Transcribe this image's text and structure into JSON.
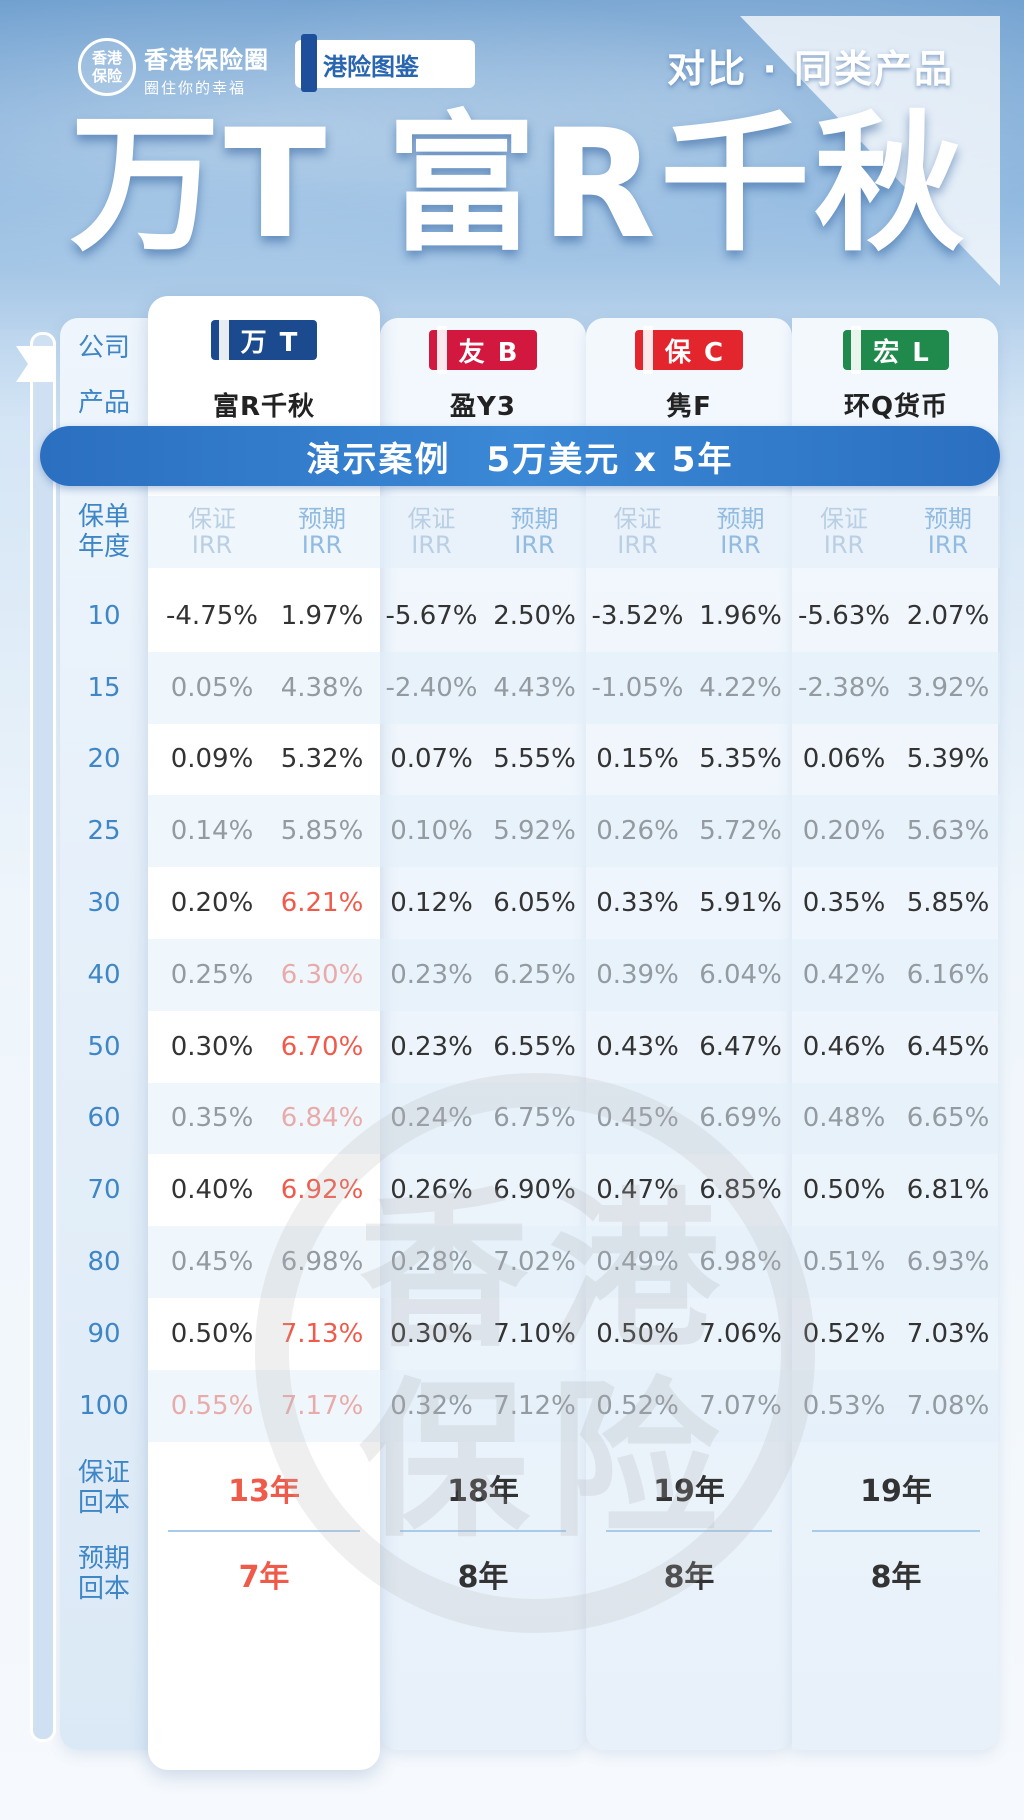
{
  "brand": {
    "logo_circle": "香港保险",
    "name": "香港保险圈",
    "slogan": "圈住你的幸福",
    "guide": "港险图鉴"
  },
  "header": {
    "compare_tag": "对比 · 同类产品",
    "title": "万T 富R千秋"
  },
  "labels": {
    "company": "公司",
    "product": "产品",
    "policy_year": "保单\n年度",
    "guaranteed_irr": "保证\nIRR",
    "expected_irr": "预期\nIRR",
    "guaranteed_payback": "保证\n回本",
    "expected_payback": "预期\n回本"
  },
  "case": {
    "label": "演示案例",
    "detail": "5万美元 x 5年"
  },
  "products": [
    {
      "company": "万 T",
      "product": "富R千秋",
      "badge_color": "#1b4a8f",
      "guaranteed_payback": "13年",
      "expected_payback": "7年"
    },
    {
      "company": "友 B",
      "product": "盈Y3",
      "badge_color": "#d3183f",
      "guaranteed_payback": "18年",
      "expected_payback": "8年"
    },
    {
      "company": "保 C",
      "product": "隽F",
      "badge_color": "#e3262d",
      "guaranteed_payback": "19年",
      "expected_payback": "8年"
    },
    {
      "company": "宏 L",
      "product": "环Q货币",
      "badge_color": "#1f8a4c",
      "guaranteed_payback": "19年",
      "expected_payback": "8年"
    }
  ],
  "rows": [
    {
      "year": "10",
      "values": [
        "-4.75%",
        "1.97%",
        "-5.67%",
        "2.50%",
        "-3.52%",
        "1.96%",
        "-5.63%",
        "2.07%"
      ],
      "red": []
    },
    {
      "year": "15",
      "values": [
        "0.05%",
        "4.38%",
        "-2.40%",
        "4.43%",
        "-1.05%",
        "4.22%",
        "-2.38%",
        "3.92%"
      ],
      "red": []
    },
    {
      "year": "20",
      "values": [
        "0.09%",
        "5.32%",
        "0.07%",
        "5.55%",
        "0.15%",
        "5.35%",
        "0.06%",
        "5.39%"
      ],
      "red": []
    },
    {
      "year": "25",
      "values": [
        "0.14%",
        "5.85%",
        "0.10%",
        "5.92%",
        "0.26%",
        "5.72%",
        "0.20%",
        "5.63%"
      ],
      "red": []
    },
    {
      "year": "30",
      "values": [
        "0.20%",
        "6.21%",
        "0.12%",
        "6.05%",
        "0.33%",
        "5.91%",
        "0.35%",
        "5.85%"
      ],
      "red": [
        1
      ]
    },
    {
      "year": "40",
      "values": [
        "0.25%",
        "6.30%",
        "0.23%",
        "6.25%",
        "0.39%",
        "6.04%",
        "0.42%",
        "6.16%"
      ],
      "red": [
        1
      ]
    },
    {
      "year": "50",
      "values": [
        "0.30%",
        "6.70%",
        "0.23%",
        "6.55%",
        "0.43%",
        "6.47%",
        "0.46%",
        "6.45%"
      ],
      "red": [
        1
      ]
    },
    {
      "year": "60",
      "values": [
        "0.35%",
        "6.84%",
        "0.24%",
        "6.75%",
        "0.45%",
        "6.69%",
        "0.48%",
        "6.65%"
      ],
      "red": [
        1
      ]
    },
    {
      "year": "70",
      "values": [
        "0.40%",
        "6.92%",
        "0.26%",
        "6.90%",
        "0.47%",
        "6.85%",
        "0.50%",
        "6.81%"
      ],
      "red": [
        1
      ]
    },
    {
      "year": "80",
      "values": [
        "0.45%",
        "6.98%",
        "0.28%",
        "7.02%",
        "0.49%",
        "6.98%",
        "0.51%",
        "6.93%"
      ],
      "red": []
    },
    {
      "year": "90",
      "values": [
        "0.50%",
        "7.13%",
        "0.30%",
        "7.10%",
        "0.50%",
        "7.06%",
        "0.52%",
        "7.03%"
      ],
      "red": [
        1
      ]
    },
    {
      "year": "100",
      "values": [
        "0.55%",
        "7.17%",
        "0.32%",
        "7.12%",
        "0.52%",
        "7.07%",
        "0.53%",
        "7.08%"
      ],
      "red": [
        0,
        1
      ]
    }
  ],
  "payback_highlight": 0,
  "watermark": "香港保险"
}
